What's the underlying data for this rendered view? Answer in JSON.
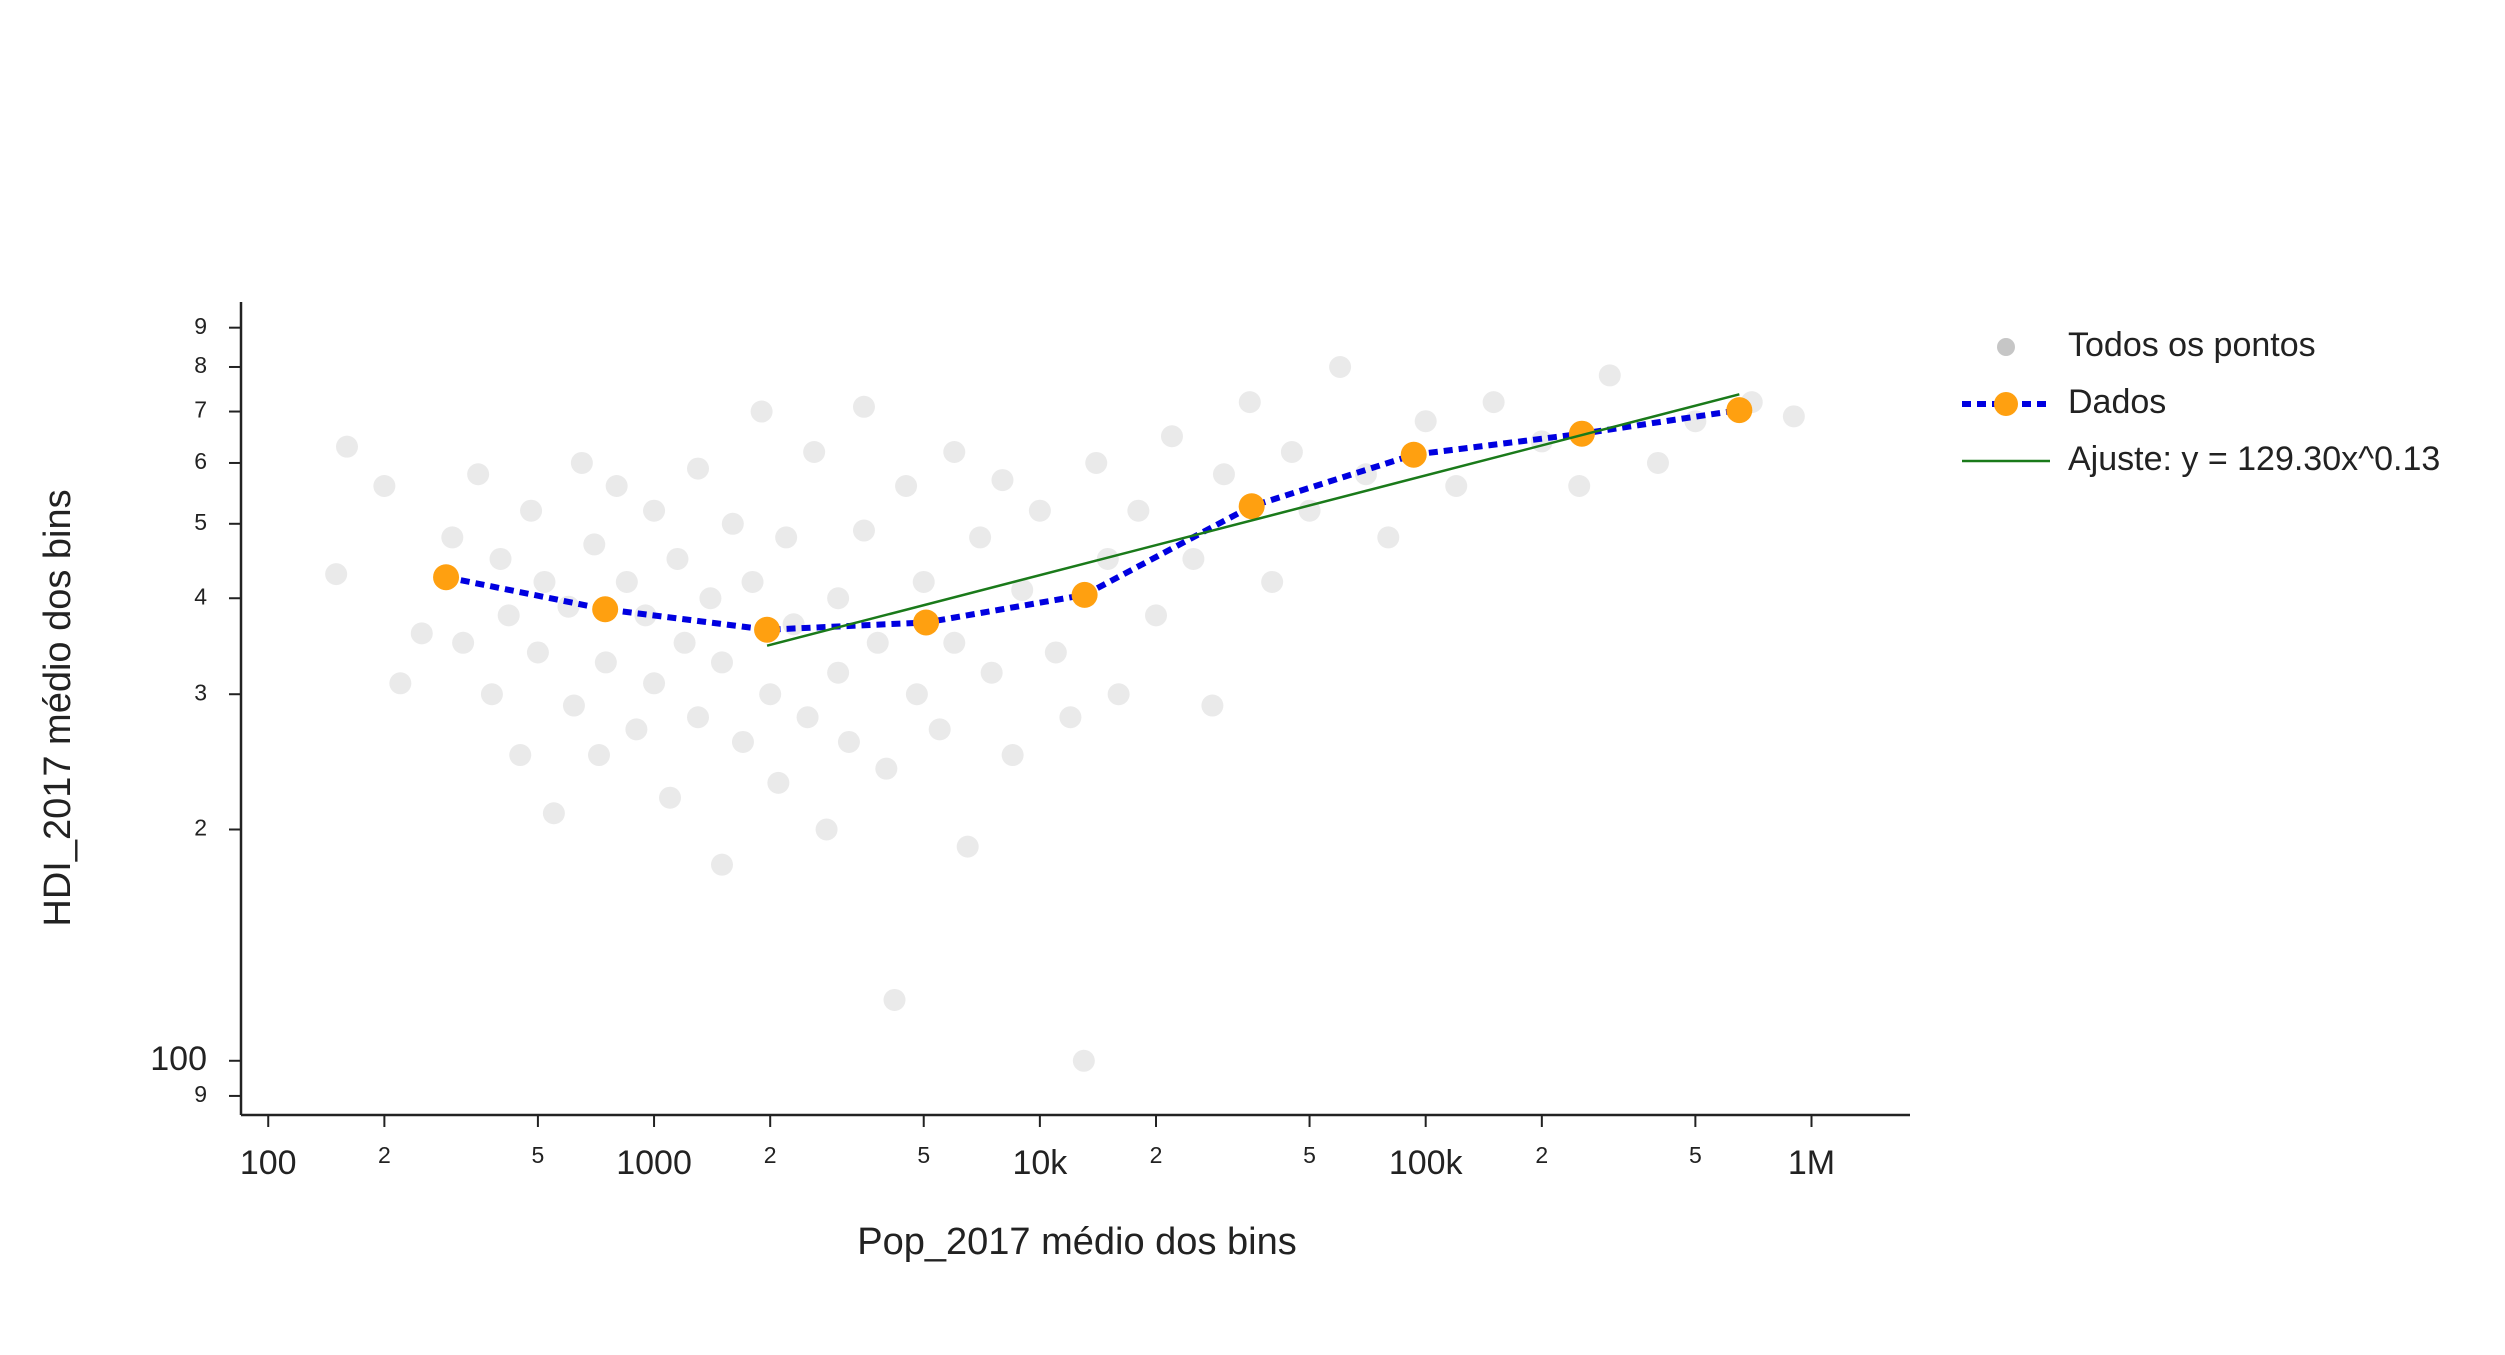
{
  "chart_data": {
    "type": "scatter",
    "xlabel": "Pop_2017 médio dos bins",
    "ylabel": "HDI_2017 médio dos bins",
    "log_x": true,
    "log_y": true,
    "legend": "outside-right",
    "xlim": [
      85,
      1800000
    ],
    "ylim": [
      85,
      972
    ],
    "xticks": [
      100,
      {
        "value": 200,
        "label": "2"
      },
      {
        "value": 500,
        "label": "5"
      },
      1000,
      {
        "value": 2000,
        "label": "2"
      },
      {
        "value": 5000,
        "label": "5"
      },
      {
        "value": 10000,
        "label": "10k"
      },
      {
        "value": 20000,
        "label": "2"
      },
      {
        "value": 50000,
        "label": "5"
      },
      {
        "value": 100000,
        "label": "100k"
      },
      {
        "value": 200000,
        "label": "2"
      },
      {
        "value": 500000,
        "label": "5"
      },
      {
        "value": 1000000,
        "label": "1M"
      }
    ],
    "yticks": [
      {
        "value": 90,
        "label": "9"
      },
      100,
      {
        "value": 200,
        "label": "2"
      },
      {
        "value": 300,
        "label": "3"
      },
      {
        "value": 400,
        "label": "4"
      },
      {
        "value": 500,
        "label": "5"
      },
      {
        "value": 600,
        "label": "6"
      },
      {
        "value": 700,
        "label": "7"
      },
      {
        "value": 800,
        "label": "8"
      },
      {
        "value": 900,
        "label": "9"
      }
    ],
    "series": [
      {
        "name": "Todos os pontos",
        "type": "scatter",
        "color": "#a0a0a0",
        "x": [
          150,
          160,
          200,
          220,
          250,
          300,
          320,
          350,
          380,
          400,
          420,
          450,
          480,
          500,
          520,
          550,
          600,
          620,
          650,
          700,
          720,
          750,
          800,
          850,
          900,
          950,
          1000,
          1000,
          1100,
          1150,
          1200,
          1300,
          1300,
          1400,
          1500,
          1500,
          1600,
          1700,
          1800,
          1900,
          2000,
          2100,
          2200,
          2300,
          2500,
          2600,
          2800,
          3000,
          3000,
          3200,
          3500,
          3500,
          3800,
          4000,
          4200,
          4500,
          4800,
          5000,
          5500,
          6000,
          6000,
          6500,
          7000,
          7500,
          8000,
          8500,
          9000,
          10000,
          11000,
          12000,
          13000,
          14000,
          15000,
          16000,
          18000,
          20000,
          22000,
          25000,
          28000,
          30000,
          35000,
          40000,
          45000,
          50000,
          60000,
          70000,
          80000,
          100000,
          120000,
          150000,
          200000,
          250000,
          300000,
          400000,
          500000,
          700000,
          900000
        ],
        "values": [
          430,
          630,
          560,
          310,
          360,
          480,
          350,
          580,
          300,
          450,
          380,
          250,
          520,
          340,
          420,
          210,
          390,
          290,
          600,
          470,
          250,
          330,
          560,
          420,
          270,
          380,
          520,
          310,
          220,
          450,
          350,
          590,
          280,
          400,
          180,
          330,
          500,
          260,
          420,
          700,
          300,
          230,
          480,
          370,
          280,
          620,
          200,
          400,
          320,
          260,
          710,
          490,
          350,
          240,
          120,
          560,
          300,
          420,
          270,
          620,
          350,
          190,
          480,
          320,
          570,
          250,
          410,
          520,
          340,
          280,
          100,
          600,
          450,
          300,
          520,
          380,
          650,
          450,
          290,
          580,
          720,
          420,
          620,
          520,
          800,
          580,
          480,
          680,
          560,
          720,
          640,
          560,
          780,
          600,
          680,
          720,
          690
        ]
      },
      {
        "name": "Dados",
        "type": "line",
        "color": "#0000e0",
        "marker_color": "#ffa010",
        "dashed": true,
        "x": [
          289,
          747,
          1963,
          5070,
          13060,
          35400,
          93100,
          254000,
          650000
        ],
        "values": [
          426,
          387,
          364,
          372,
          404,
          527,
          615,
          655,
          703
        ]
      },
      {
        "name": "Ajuste: y = 129.30x^0.13",
        "type": "line",
        "color": "#1a7a1a",
        "x": [
          1963,
          650000
        ],
        "values": [
          347,
          737
        ]
      }
    ]
  }
}
